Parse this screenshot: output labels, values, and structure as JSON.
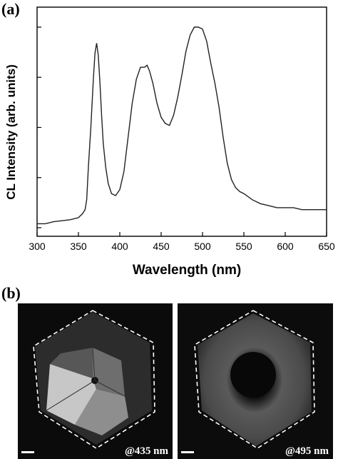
{
  "figure": {
    "label_a": "(a)",
    "label_b": "(b)"
  },
  "chart_data": {
    "type": "line",
    "title": "",
    "xlabel": "Wavelength (nm)",
    "ylabel": "CL Intensity (arb. units)",
    "xlim": [
      300,
      650
    ],
    "ylim": [
      0,
      1
    ],
    "x_ticks": [
      300,
      350,
      400,
      450,
      500,
      550,
      600,
      650
    ],
    "y_tick_labels_shown": false,
    "grid": false,
    "series": [
      {
        "x": [
          300,
          310,
          320,
          330,
          340,
          350,
          355,
          358,
          360,
          362,
          365,
          368,
          370,
          372,
          374,
          376,
          378,
          380,
          383,
          386,
          390,
          395,
          400,
          405,
          410,
          415,
          420,
          425,
          430,
          433,
          436,
          440,
          445,
          450,
          455,
          460,
          465,
          470,
          475,
          480,
          485,
          490,
          495,
          500,
          505,
          510,
          515,
          520,
          525,
          530,
          535,
          540,
          545,
          550,
          560,
          570,
          580,
          590,
          600,
          610,
          620,
          630,
          640,
          650
        ],
        "values": [
          0.02,
          0.02,
          0.03,
          0.035,
          0.04,
          0.05,
          0.07,
          0.09,
          0.14,
          0.3,
          0.5,
          0.74,
          0.87,
          0.92,
          0.86,
          0.72,
          0.56,
          0.42,
          0.3,
          0.22,
          0.17,
          0.16,
          0.19,
          0.28,
          0.45,
          0.62,
          0.74,
          0.8,
          0.8,
          0.81,
          0.78,
          0.72,
          0.62,
          0.55,
          0.52,
          0.51,
          0.56,
          0.65,
          0.76,
          0.88,
          0.96,
          1.0,
          1.0,
          0.99,
          0.93,
          0.82,
          0.72,
          0.6,
          0.45,
          0.32,
          0.24,
          0.2,
          0.18,
          0.17,
          0.14,
          0.12,
          0.11,
          0.1,
          0.1,
          0.1,
          0.09,
          0.09,
          0.09,
          0.09
        ]
      }
    ]
  },
  "images": [
    {
      "wavelength_label": "@435 nm"
    },
    {
      "wavelength_label": "@495 nm"
    }
  ]
}
